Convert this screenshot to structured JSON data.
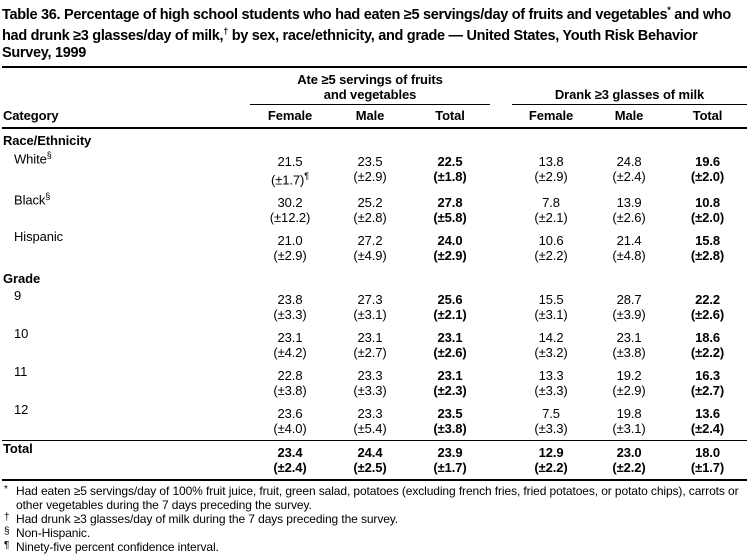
{
  "title": {
    "segments": [
      {
        "text": "Table 36. Percentage of high school students who had eaten ≥5 servings/day of fruits and vegetables"
      },
      {
        "text": "*",
        "sup": true
      },
      {
        "text": " and who had drunk ≥3 glasses/day of milk,"
      },
      {
        "text": "†",
        "sup": true
      },
      {
        "text": " by sex, race/ethnicity, and grade — United States, Youth Risk Behavior Survey, 1999"
      }
    ]
  },
  "table": {
    "category_header": "Category",
    "groups": [
      {
        "label_lines": [
          "Ate ≥5 servings of fruits",
          "and vegetables"
        ]
      },
      {
        "label_lines": [
          "Drank ≥3 glasses of milk"
        ]
      }
    ],
    "column_headers": [
      "Female",
      "Male",
      "Total",
      "Female",
      "Male",
      "Total"
    ],
    "bold_columns": [
      2,
      5
    ],
    "sections": [
      {
        "header": "Race/Ethnicity",
        "rows": [
          {
            "label": "White",
            "label_marker": "§",
            "values": [
              "21.5",
              "23.5",
              "22.5",
              "13.8",
              "24.8",
              "19.6"
            ],
            "ci": [
              "(±1.7)",
              "(±2.9)",
              "(±1.8)",
              "(±2.9)",
              "(±2.4)",
              "(±2.0)"
            ],
            "ci_markers": [
              "¶",
              "",
              "",
              "",
              "",
              ""
            ]
          },
          {
            "label": "Black",
            "label_marker": "§",
            "values": [
              "30.2",
              "25.2",
              "27.8",
              "7.8",
              "13.9",
              "10.8"
            ],
            "ci": [
              "(±12.2)",
              "(±2.8)",
              "(±5.8)",
              "(±2.1)",
              "(±2.6)",
              "(±2.0)"
            ]
          },
          {
            "label": "Hispanic",
            "values": [
              "21.0",
              "27.2",
              "24.0",
              "10.6",
              "21.4",
              "15.8"
            ],
            "ci": [
              "(±2.9)",
              "(±4.9)",
              "(±2.9)",
              "(±2.2)",
              "(±4.8)",
              "(±2.8)"
            ]
          }
        ]
      },
      {
        "header": "Grade",
        "rows": [
          {
            "label": "9",
            "values": [
              "23.8",
              "27.3",
              "25.6",
              "15.5",
              "28.7",
              "22.2"
            ],
            "ci": [
              "(±3.3)",
              "(±3.1)",
              "(±2.1)",
              "(±3.1)",
              "(±3.9)",
              "(±2.6)"
            ]
          },
          {
            "label": "10",
            "values": [
              "23.1",
              "23.1",
              "23.1",
              "14.2",
              "23.1",
              "18.6"
            ],
            "ci": [
              "(±4.2)",
              "(±2.7)",
              "(±2.6)",
              "(±3.2)",
              "(±3.8)",
              "(±2.2)"
            ]
          },
          {
            "label": "11",
            "values": [
              "22.8",
              "23.3",
              "23.1",
              "13.3",
              "19.2",
              "16.3"
            ],
            "ci": [
              "(±3.8)",
              "(±3.3)",
              "(±2.3)",
              "(±3.3)",
              "(±2.9)",
              "(±2.7)"
            ]
          },
          {
            "label": "12",
            "values": [
              "23.6",
              "23.3",
              "23.5",
              "7.5",
              "19.8",
              "13.6"
            ],
            "ci": [
              "(±4.0)",
              "(±5.4)",
              "(±3.8)",
              "(±3.3)",
              "(±3.1)",
              "(±2.4)"
            ]
          }
        ]
      }
    ],
    "total_row": {
      "label": "Total",
      "values": [
        "23.4",
        "24.4",
        "23.9",
        "12.9",
        "23.0",
        "18.0"
      ],
      "ci": [
        "(±2.4)",
        "(±2.5)",
        "(±1.7)",
        "(±2.2)",
        "(±2.2)",
        "(±1.7)"
      ]
    }
  },
  "footnotes": [
    {
      "marker": "*",
      "text": "Had eaten ≥5 servings/day of 100% fruit juice, fruit, green salad, potatoes (excluding french fries, fried potatoes, or potato chips), carrots or other vegetables during the 7 days preceding the survey."
    },
    {
      "marker": "†",
      "text": "Had drunk ≥3 glasses/day of milk during the 7 days preceding the survey."
    },
    {
      "marker": "§",
      "text": "Non-Hispanic."
    },
    {
      "marker": "¶",
      "text": "Ninety-five percent confidence interval."
    }
  ]
}
